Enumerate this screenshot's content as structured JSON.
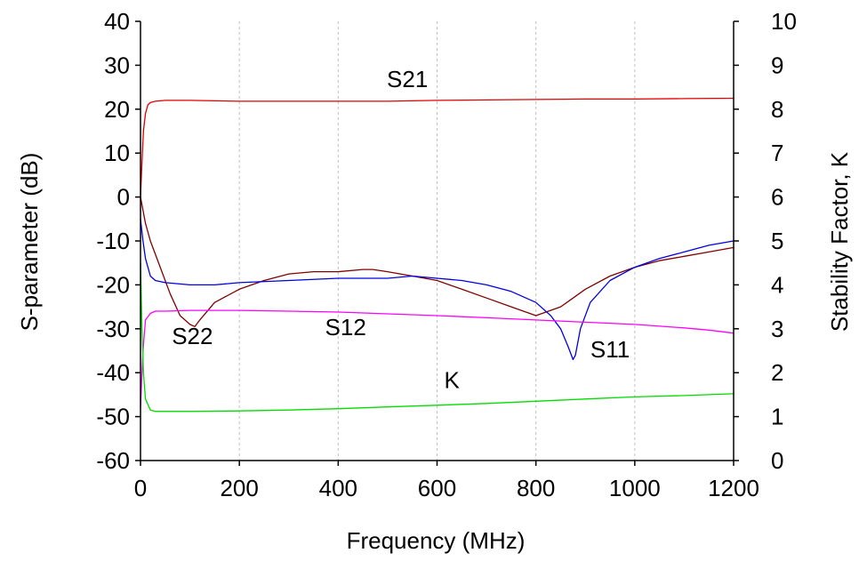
{
  "chart_data": {
    "type": "line",
    "xlabel": "Frequency (MHz)",
    "ylabel_left": "S-parameter (dB)",
    "ylabel_right": "Stability Factor, K",
    "xlim": [
      0,
      1200
    ],
    "ylim_left": [
      -60,
      40
    ],
    "ylim_right": [
      0,
      10
    ],
    "x_ticks": [
      "0",
      "200",
      "400",
      "600",
      "800",
      "1000",
      "1200"
    ],
    "y_left_ticks": [
      "-60",
      "-50",
      "-40",
      "-30",
      "-20",
      "-10",
      "0",
      "10",
      "20",
      "30",
      "40"
    ],
    "y_right_ticks": [
      "0",
      "1",
      "2",
      "3",
      "4",
      "5",
      "6",
      "7",
      "8",
      "9",
      "10"
    ],
    "grid": {
      "vertical": true,
      "horizontal": false
    },
    "series": [
      {
        "name": "S21",
        "axis": "left",
        "color": "#e00000",
        "x": [
          0,
          3,
          6,
          10,
          15,
          20,
          30,
          50,
          100,
          200,
          300,
          400,
          500,
          600,
          700,
          800,
          900,
          1000,
          1100,
          1200
        ],
        "y": [
          0,
          8,
          15,
          19,
          21,
          21.5,
          21.8,
          22,
          22,
          21.8,
          21.8,
          21.8,
          21.8,
          22,
          22.1,
          22.2,
          22.3,
          22.3,
          22.4,
          22.5
        ]
      },
      {
        "name": "S22",
        "axis": "left",
        "color": "#800000",
        "x": [
          0,
          10,
          20,
          40,
          60,
          80,
          100,
          110,
          120,
          150,
          200,
          250,
          300,
          350,
          400,
          450,
          470,
          500,
          550,
          600,
          650,
          700,
          750,
          800,
          850,
          900,
          950,
          1000,
          1050,
          1100,
          1150,
          1200
        ],
        "y": [
          0,
          -6,
          -10,
          -16,
          -22,
          -27,
          -29,
          -29.5,
          -28,
          -24,
          -21,
          -19,
          -17.5,
          -17,
          -17,
          -16.5,
          -16.5,
          -17,
          -18,
          -19,
          -21,
          -23,
          -25,
          -27,
          -25,
          -21,
          -18,
          -16,
          -14.5,
          -13.5,
          -12.5,
          -11.5
        ]
      },
      {
        "name": "S11",
        "axis": "left",
        "color": "#0000e0",
        "x": [
          0,
          5,
          10,
          20,
          30,
          50,
          100,
          150,
          200,
          300,
          400,
          500,
          550,
          600,
          650,
          700,
          750,
          800,
          830,
          850,
          865,
          875,
          880,
          890,
          910,
          950,
          1000,
          1050,
          1100,
          1150,
          1200
        ],
        "y": [
          -5,
          -10,
          -14,
          -18,
          -19,
          -19.5,
          -20,
          -20,
          -19.5,
          -19,
          -18.5,
          -18.5,
          -18,
          -18.5,
          -19,
          -20,
          -21.5,
          -24,
          -27,
          -30,
          -34,
          -37,
          -36,
          -30,
          -24,
          -19,
          -16,
          -14,
          -12.5,
          -11,
          -10
        ]
      },
      {
        "name": "S12",
        "axis": "left",
        "color": "#ff00ff",
        "x": [
          0,
          5,
          10,
          20,
          30,
          50,
          100,
          200,
          300,
          400,
          500,
          600,
          700,
          800,
          900,
          1000,
          1100,
          1150,
          1200
        ],
        "y": [
          -48,
          -35,
          -28,
          -26.5,
          -26,
          -26,
          -25.8,
          -25.8,
          -26,
          -26.2,
          -26.6,
          -27,
          -27.5,
          -28,
          -28.5,
          -29,
          -29.8,
          -30.3,
          -31
        ]
      },
      {
        "name": "K",
        "axis": "right",
        "color": "#00dd00",
        "x": [
          0,
          3,
          6,
          10,
          20,
          30,
          50,
          100,
          200,
          300,
          400,
          500,
          600,
          700,
          800,
          900,
          1000,
          1100,
          1200
        ],
        "y": [
          4.5,
          3.0,
          2.0,
          1.4,
          1.15,
          1.12,
          1.12,
          1.12,
          1.13,
          1.15,
          1.18,
          1.22,
          1.26,
          1.3,
          1.35,
          1.4,
          1.45,
          1.48,
          1.52
        ]
      }
    ],
    "annotations": [
      {
        "text": "S21",
        "x": 540,
        "y": 25,
        "axis": "left"
      },
      {
        "text": "S22",
        "x": 105,
        "y": -33.5,
        "axis": "left"
      },
      {
        "text": "S12",
        "x": 415,
        "y": -31.5,
        "axis": "left"
      },
      {
        "text": "S11",
        "x": 950,
        "y": -36.5,
        "axis": "left"
      },
      {
        "text": "K",
        "x": 630,
        "y": -43.5,
        "axis": "left"
      }
    ]
  }
}
